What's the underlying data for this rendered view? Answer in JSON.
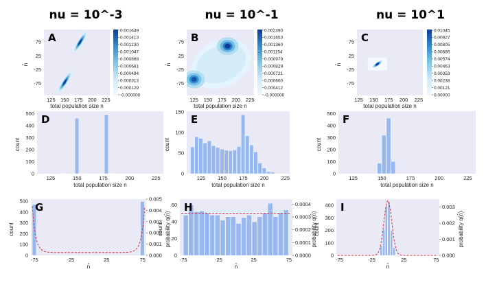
{
  "colors": {
    "plot_bg": "#eaeaf6",
    "bar": "#97b7ef",
    "heat_low": "#f2f9ff",
    "heat_high": "#0a3b9c",
    "dashed": "#d9303c"
  },
  "columns": [
    "nu = 10^-3",
    "nu = 10^-1",
    "nu = 10^1"
  ],
  "chart_data": [
    {
      "panel": "A",
      "type": "heatmap",
      "title": "nu = 10^-3",
      "xlabel": "total population size n",
      "ylabel": "n̂",
      "xlim": [
        112,
        232
      ],
      "ylim": [
        -118,
        120
      ],
      "xticks": [
        "125",
        "150",
        "175",
        "200",
        "225"
      ],
      "yticks": [
        "75",
        "25",
        "-25",
        "-75"
      ],
      "colorbar": [
        "0.001649",
        "0.001413",
        "0.001230",
        "0.001047",
        "0.000868",
        "0.000681",
        "0.000494",
        "0.000313",
        "0.000129",
        "-0.000000"
      ],
      "blobs": [
        {
          "n": 178,
          "nhat": 75,
          "weight": 1.0
        },
        {
          "n": 150,
          "nhat": -70,
          "weight": 1.0
        }
      ]
    },
    {
      "panel": "B",
      "type": "heatmap",
      "title": "nu = 10^-1",
      "xlabel": "total population size n",
      "ylabel": "n̂",
      "xlim": [
        112,
        232
      ],
      "ylim": [
        -118,
        120
      ],
      "xticks": [
        "125",
        "150",
        "175",
        "200",
        "225"
      ],
      "yticks": [
        "75",
        "25",
        "-25",
        "-75"
      ],
      "colorbar": [
        "0.002390",
        "0.001653",
        "0.001360",
        "0.001154",
        "0.000979",
        "0.000829",
        "0.000721",
        "0.000600",
        "0.000412",
        "-0.000000"
      ],
      "blobs": [
        {
          "n": 185,
          "nhat": 60,
          "weight": 1.0
        },
        {
          "n": 125,
          "nhat": -60,
          "weight": 0.9
        },
        {
          "n": 160,
          "nhat": 10,
          "weight": 0.3
        }
      ]
    },
    {
      "panel": "C",
      "type": "heatmap",
      "title": "nu = 10^1",
      "xlabel": "total population size n",
      "ylabel": "n̂",
      "xlim": [
        122,
        232
      ],
      "ylim": [
        -118,
        120
      ],
      "xticks": [
        "125",
        "150",
        "175",
        "200",
        "225"
      ],
      "yticks": [
        "75",
        "25",
        "-25",
        "-75"
      ],
      "colorbar": [
        "0.01045",
        "0.00927",
        "0.00805",
        "0.00686",
        "0.00574",
        "0.00463",
        "0.00353",
        "0.00238",
        "0.00121",
        "0.00000"
      ],
      "blobs": [
        {
          "n": 156,
          "nhat": -5,
          "weight": 1.0
        }
      ]
    },
    {
      "panel": "D",
      "type": "bar",
      "xlabel": "total population size n",
      "ylabel": "count",
      "xlim": [
        112,
        232
      ],
      "ylim": [
        0,
        520
      ],
      "xticks": [
        "125",
        "150",
        "175",
        "200",
        "225"
      ],
      "yticks": [
        "0",
        "100",
        "200",
        "300",
        "400",
        "500"
      ],
      "bin_width": 4,
      "bins": [
        {
          "x": 128,
          "count": 4
        },
        {
          "x": 132,
          "count": 4
        },
        {
          "x": 136,
          "count": 2
        },
        {
          "x": 150,
          "count": 462
        },
        {
          "x": 178,
          "count": 492
        },
        {
          "x": 182,
          "count": 2
        }
      ]
    },
    {
      "panel": "E",
      "type": "bar",
      "xlabel": "total population size n",
      "ylabel": "count",
      "xlim": [
        108,
        230
      ],
      "ylim": [
        0,
        152
      ],
      "xticks": [
        "125",
        "150",
        "175",
        "200",
        "225"
      ],
      "yticks": [
        "0",
        "50",
        "100",
        "150"
      ],
      "bin_width": 5,
      "bins": [
        {
          "x": 115,
          "count": 65
        },
        {
          "x": 120,
          "count": 90
        },
        {
          "x": 125,
          "count": 86
        },
        {
          "x": 130,
          "count": 75
        },
        {
          "x": 135,
          "count": 80
        },
        {
          "x": 140,
          "count": 68
        },
        {
          "x": 145,
          "count": 64
        },
        {
          "x": 150,
          "count": 60
        },
        {
          "x": 155,
          "count": 57
        },
        {
          "x": 160,
          "count": 56
        },
        {
          "x": 165,
          "count": 58
        },
        {
          "x": 170,
          "count": 66
        },
        {
          "x": 175,
          "count": 143
        },
        {
          "x": 180,
          "count": 92
        },
        {
          "x": 185,
          "count": 70
        },
        {
          "x": 190,
          "count": 53
        },
        {
          "x": 195,
          "count": 26
        },
        {
          "x": 200,
          "count": 14
        },
        {
          "x": 205,
          "count": 5
        },
        {
          "x": 210,
          "count": 4
        }
      ]
    },
    {
      "panel": "F",
      "type": "bar",
      "xlabel": "total population size n",
      "ylabel": "count",
      "xlim": [
        112,
        232
      ],
      "ylim": [
        0,
        520
      ],
      "xticks": [
        "125",
        "150",
        "175",
        "200",
        "225"
      ],
      "yticks": [
        "0",
        "100",
        "200",
        "300",
        "400",
        "500"
      ],
      "bin_width": 4,
      "bins": [
        {
          "x": 148,
          "count": 88
        },
        {
          "x": 152,
          "count": 320
        },
        {
          "x": 156,
          "count": 462
        },
        {
          "x": 160,
          "count": 102
        }
      ]
    },
    {
      "panel": "G",
      "type": "bar",
      "xlabel": "n̂",
      "ylabel": "count",
      "y2label": "probability q(n̂)",
      "xlim": [
        -80,
        80
      ],
      "ylim": [
        0,
        520
      ],
      "y2lim": [
        0,
        0.005
      ],
      "xticks": [
        "-75",
        "-25",
        "25",
        "75"
      ],
      "yticks": [
        "0",
        "100",
        "200",
        "300",
        "400",
        "500"
      ],
      "y2ticks": [
        "0.000",
        "0.001",
        "0.002",
        "0.003",
        "0.004",
        "0.005"
      ],
      "bin_width": 6,
      "bins": [
        {
          "x": -75,
          "count": 470
        },
        {
          "x": 75,
          "count": 498
        }
      ],
      "curve": {
        "kind": "edge",
        "min": 0.00026,
        "max": 0.0047,
        "scale": 4.5
      }
    },
    {
      "panel": "H",
      "type": "bar",
      "xlabel": "n̂",
      "ylabel": "count",
      "y2label": "probability q(n̂)",
      "xlim": [
        -80,
        80
      ],
      "ylim": [
        0,
        67
      ],
      "y2lim": [
        0,
        0.00044
      ],
      "xticks": [
        "-75",
        "-25",
        "25",
        "75"
      ],
      "yticks": [
        "0",
        "20",
        "40",
        "60"
      ],
      "y2ticks": [
        "0.0000",
        "0.0001",
        "0.0002",
        "0.0003",
        "0.0004"
      ],
      "bin_width": 7.5,
      "bins": [
        {
          "x": -71.25,
          "count": 48
        },
        {
          "x": -63.75,
          "count": 60
        },
        {
          "x": -56.25,
          "count": 52
        },
        {
          "x": -48.75,
          "count": 53
        },
        {
          "x": -41.25,
          "count": 50
        },
        {
          "x": -33.75,
          "count": 48
        },
        {
          "x": -26.25,
          "count": 48
        },
        {
          "x": -18.75,
          "count": 42
        },
        {
          "x": -11.25,
          "count": 46
        },
        {
          "x": -3.75,
          "count": 46
        },
        {
          "x": 3.75,
          "count": 38
        },
        {
          "x": 11.25,
          "count": 45
        },
        {
          "x": 18.75,
          "count": 48
        },
        {
          "x": 26.25,
          "count": 40
        },
        {
          "x": 33.75,
          "count": 46
        },
        {
          "x": 41.25,
          "count": 50
        },
        {
          "x": 48.75,
          "count": 62
        },
        {
          "x": 56.25,
          "count": 46
        },
        {
          "x": 63.75,
          "count": 51
        },
        {
          "x": 71.25,
          "count": 54
        }
      ],
      "curve": {
        "kind": "flat",
        "value": 0.00033
      }
    },
    {
      "panel": "I",
      "type": "bar",
      "xlabel": "n̂",
      "ylabel": "count",
      "y2label": "probability q(n̂)",
      "xlim": [
        -80,
        80
      ],
      "ylim": [
        0,
        450
      ],
      "y2lim": [
        0,
        0.0035
      ],
      "xticks": [
        "-75",
        "-25",
        "25",
        "75"
      ],
      "yticks": [
        "0",
        "100",
        "200",
        "300",
        "400"
      ],
      "y2ticks": [
        "0.000",
        "0.001",
        "0.002",
        "0.003"
      ],
      "bin_width": 4,
      "bins": [
        {
          "x": -10,
          "count": 78
        },
        {
          "x": -6,
          "count": 208
        },
        {
          "x": -2,
          "count": 396
        },
        {
          "x": 2,
          "count": 432
        },
        {
          "x": 6,
          "count": 200
        },
        {
          "x": 10,
          "count": 62
        }
      ],
      "curve": {
        "kind": "gauss",
        "mu": 0,
        "sigma": 6.2,
        "peak": 0.0034
      }
    }
  ]
}
